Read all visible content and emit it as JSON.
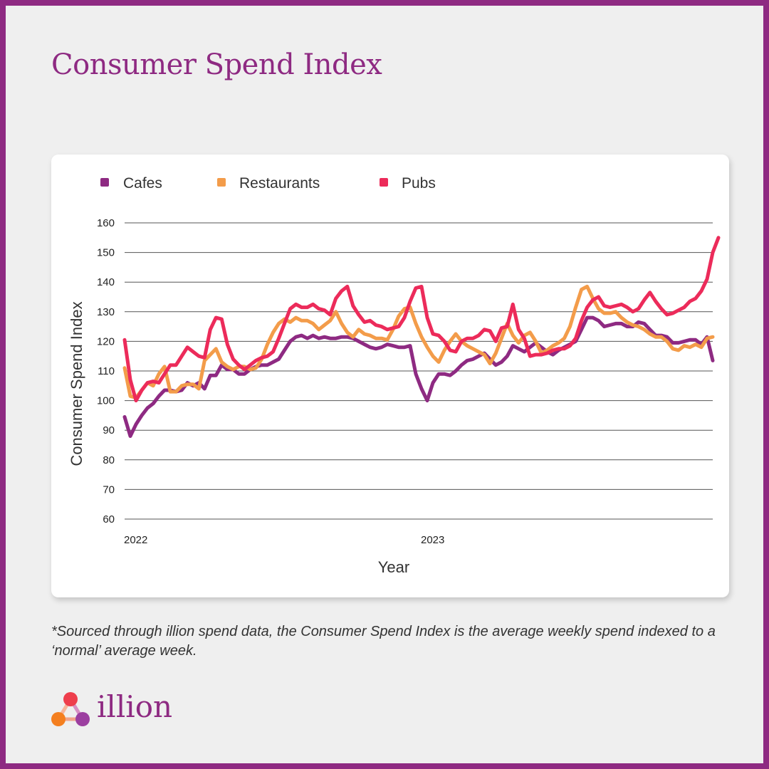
{
  "title": "Consumer Spend Index",
  "footnote": "*Sourced through illion spend data, the Consumer Spend Index is the average weekly spend indexed to a ‘normal’ average week.",
  "brand": {
    "name": "illion"
  },
  "colors": {
    "frame": "#8e2a82",
    "cafes": "#8e2a82",
    "restaurants": "#f39c4a",
    "pubs": "#ec2b5a"
  },
  "chart_data": {
    "type": "line",
    "xlabel": "Year",
    "ylabel": "Consumer Spend Index",
    "ylim": [
      60,
      160
    ],
    "yticks": [
      60,
      70,
      80,
      90,
      100,
      110,
      120,
      130,
      140,
      150,
      160
    ],
    "xtick_labels": [
      {
        "label": "2022",
        "week": 0
      },
      {
        "label": "2023",
        "week": 52
      }
    ],
    "grid": true,
    "legend_position": "top",
    "series": [
      {
        "name": "Cafes",
        "color": "#8e2a82",
        "values": [
          94.5,
          88,
          92,
          95,
          97.5,
          99,
          101.5,
          103.5,
          103.5,
          103,
          103.5,
          106,
          105,
          106,
          104,
          108.5,
          108.5,
          112,
          110.5,
          110.5,
          109,
          109,
          110.5,
          111.5,
          112,
          112,
          113,
          114,
          117,
          120,
          121.5,
          122,
          121,
          122,
          121,
          121.5,
          121,
          121,
          121.5,
          121.5,
          121,
          120,
          119,
          118,
          117.5,
          118,
          119,
          118.5,
          118,
          118,
          118.5,
          109,
          104,
          100,
          106,
          109,
          109,
          108.5,
          110,
          112,
          113.5,
          114,
          115,
          116,
          114,
          112,
          113,
          115,
          118.5,
          117.5,
          116.5,
          118,
          119.5,
          118,
          116.5,
          115.5,
          117,
          118,
          119,
          120,
          124,
          128,
          128,
          127,
          125,
          125.5,
          126,
          126,
          125,
          125,
          126.5,
          126,
          124,
          122,
          122,
          121.5,
          119.5,
          119.5,
          120,
          120.5,
          120.5,
          119,
          121.5,
          113.5
        ]
      },
      {
        "name": "Restaurants",
        "color": "#f39c4a",
        "values": [
          111,
          101.5,
          101,
          103.5,
          106,
          105,
          109,
          111.5,
          103,
          103,
          105,
          105.5,
          105.5,
          104,
          113.5,
          115.5,
          117.5,
          113,
          111.5,
          110.5,
          111.5,
          111.5,
          110.5,
          111,
          114,
          119,
          123,
          126,
          127.5,
          126.5,
          128,
          127,
          127,
          126,
          124,
          125.5,
          127,
          130,
          126,
          123,
          121.5,
          124,
          122.5,
          122,
          121,
          121,
          120.5,
          124,
          128.5,
          131,
          131.5,
          126,
          121.5,
          118,
          115,
          113,
          117,
          120,
          122.5,
          120,
          118.5,
          117.5,
          116.5,
          115.5,
          112.5,
          116,
          121,
          126,
          122,
          119.5,
          122,
          123,
          120,
          116,
          117,
          118.5,
          119.5,
          121,
          125,
          131.5,
          137.5,
          138.5,
          134.5,
          131,
          129.5,
          129.5,
          130,
          128,
          126.5,
          125.5,
          125,
          124,
          122.5,
          121.5,
          121.5,
          120,
          117.5,
          117,
          118.5,
          118,
          119,
          118,
          121,
          121.5
        ]
      },
      {
        "name": "Pubs",
        "color": "#ec2b5a",
        "values": [
          120.5,
          107,
          100,
          103.5,
          106,
          106.5,
          106,
          109,
          112,
          112,
          115,
          118,
          116.5,
          115,
          114.5,
          124,
          128,
          127.5,
          119,
          114,
          112,
          110.5,
          112,
          113.5,
          114.5,
          115,
          116.5,
          121,
          126,
          131,
          132.5,
          131.5,
          131.5,
          132.5,
          131,
          130.5,
          129,
          134.5,
          137,
          138.5,
          132,
          129,
          126.5,
          127,
          125.5,
          125,
          124,
          124.5,
          125,
          128,
          133.5,
          138,
          138.5,
          128,
          122.5,
          122,
          120,
          117,
          116.5,
          120,
          121,
          121,
          122,
          124,
          123.5,
          120,
          124.5,
          125,
          132.5,
          124,
          121,
          115,
          115.5,
          115.5,
          116,
          117,
          117.5,
          117.5,
          118.5,
          121,
          127,
          131.5,
          134,
          135,
          132,
          131.5,
          132,
          132.5,
          131.5,
          130,
          131,
          134,
          136.5,
          133.5,
          131,
          129,
          129.5,
          130.5,
          131.5,
          133.5,
          134.5,
          137,
          141,
          150,
          155
        ]
      }
    ]
  }
}
